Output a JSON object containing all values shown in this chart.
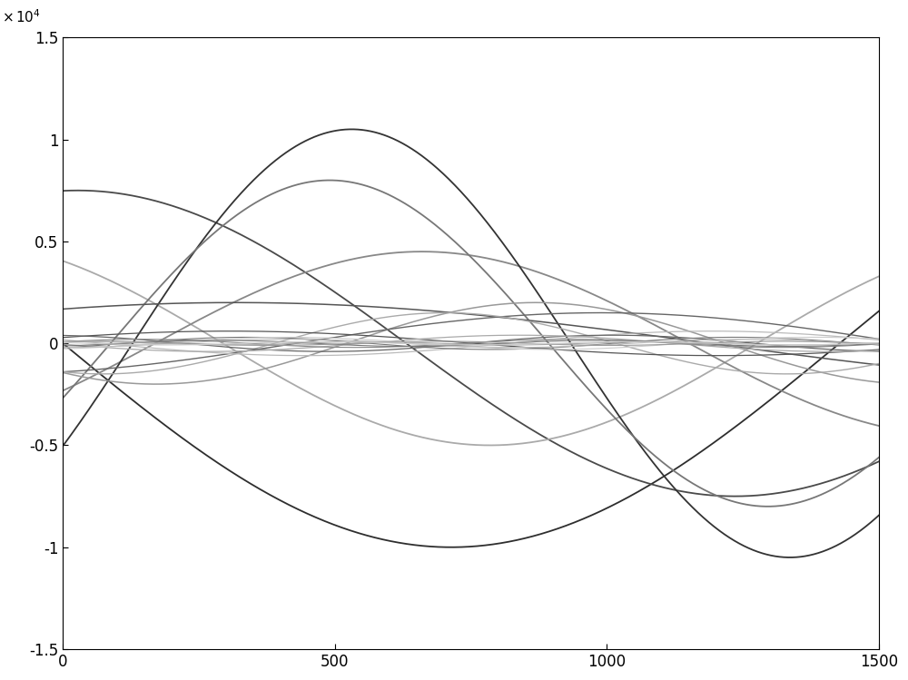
{
  "xlim": [
    0,
    1500
  ],
  "ylim": [
    -15000,
    15000
  ],
  "xticks": [
    0,
    500,
    1000,
    1500
  ],
  "yticks": [
    -15000,
    -10000,
    -5000,
    0,
    5000,
    10000,
    15000
  ],
  "ytick_labels": [
    "-1.5",
    "-1",
    "-0.5",
    "0",
    "0.5",
    "1",
    "1.5"
  ],
  "background_color": "#ffffff",
  "curves": [
    {
      "A": -10000,
      "omega": 0.0022,
      "phase": 0.0,
      "color": "#2e2e2e",
      "lw": 1.3
    },
    {
      "A": 7500,
      "omega": 0.0026,
      "phase": 1.5,
      "color": "#4a4a4a",
      "lw": 1.3
    },
    {
      "A": 5000,
      "omega": 0.0032,
      "phase": 2.2,
      "color": "#aaaaaa",
      "lw": 1.3
    },
    {
      "A": -4500,
      "omega": 0.0032,
      "phase": 2.6,
      "color": "#888888",
      "lw": 1.3
    },
    {
      "A": 10500,
      "omega": 0.0039,
      "phase": -0.5,
      "color": "#333333",
      "lw": 1.3
    },
    {
      "A": -8000,
      "omega": 0.0039,
      "phase": 2.8,
      "color": "#777777",
      "lw": 1.3
    },
    {
      "A": 2000,
      "omega": 0.0018,
      "phase": 1.0,
      "color": "#555555",
      "lw": 1.1
    },
    {
      "A": -2000,
      "omega": 0.0045,
      "phase": 0.8,
      "color": "#999999",
      "lw": 1.1
    },
    {
      "A": 1500,
      "omega": 0.0028,
      "phase": -1.2,
      "color": "#666666",
      "lw": 1.0
    },
    {
      "A": -1500,
      "omega": 0.005,
      "phase": 1.2,
      "color": "#aaaaaa",
      "lw": 1.0
    },
    {
      "A": 600,
      "omega": 0.0035,
      "phase": 0.5,
      "color": "#555555",
      "lw": 0.9
    },
    {
      "A": -600,
      "omega": 0.0042,
      "phase": -0.3,
      "color": "#bbbbbb",
      "lw": 0.9
    },
    {
      "A": 400,
      "omega": 0.006,
      "phase": 1.8,
      "color": "#666666",
      "lw": 0.9
    },
    {
      "A": -400,
      "omega": 0.0055,
      "phase": 0.1,
      "color": "#aaaaaa",
      "lw": 0.9
    },
    {
      "A": 300,
      "omega": 0.007,
      "phase": -0.8,
      "color": "#777777",
      "lw": 0.8
    },
    {
      "A": -300,
      "omega": 0.0065,
      "phase": 2.0,
      "color": "#cccccc",
      "lw": 0.8
    },
    {
      "A": 200,
      "omega": 0.008,
      "phase": 0.4,
      "color": "#888888",
      "lw": 0.8
    },
    {
      "A": -200,
      "omega": 0.0075,
      "phase": 1.6,
      "color": "#bbbbbb",
      "lw": 0.8
    },
    {
      "A": 150,
      "omega": 0.009,
      "phase": -1.0,
      "color": "#777777",
      "lw": 0.8
    },
    {
      "A": 100,
      "omega": 0.01,
      "phase": 0.9,
      "color": "#999999",
      "lw": 0.8
    },
    {
      "A": 80,
      "omega": 0.012,
      "phase": 1.1,
      "color": "#aaaaaa",
      "lw": 0.8
    },
    {
      "A": -80,
      "omega": 0.011,
      "phase": -0.5,
      "color": "#cccccc",
      "lw": 0.8
    }
  ],
  "figsize": [
    10.0,
    7.49
  ],
  "dpi": 100
}
